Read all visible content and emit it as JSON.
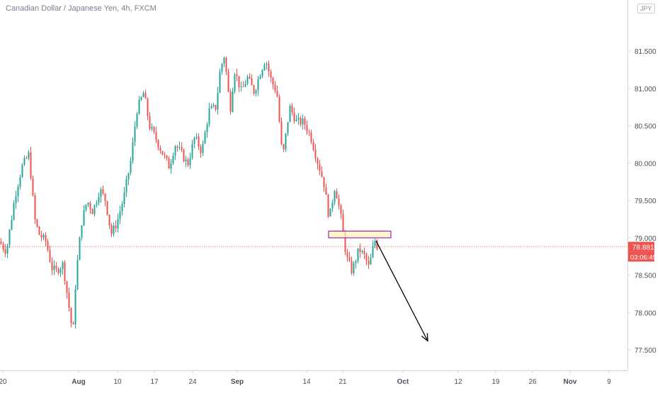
{
  "header": {
    "symbol_title": "Canadian Dollar / Japanese Yen, 4h, FXCM",
    "currency_badge": "JPY"
  },
  "price_axis": {
    "ticks": [
      "81.500",
      "81.000",
      "80.500",
      "80.000",
      "79.500",
      "79.000",
      "78.500",
      "78.000",
      "77.500"
    ],
    "current_price_label": "78.881",
    "countdown_label": "03:06:49"
  },
  "time_axis": {
    "ticks": [
      "20",
      "Aug",
      "10",
      "17",
      "24",
      "Sep",
      "14",
      "21",
      "Oct",
      "12",
      "19",
      "26",
      "Nov",
      "9"
    ]
  },
  "colors": {
    "up": "#26a69a",
    "down": "#ef5350",
    "current_price": "#ef5350",
    "zone_fill": "#fff3b0",
    "zone_border": "#9c27b0",
    "arrow": "#000000",
    "axis_text": "#4b4f5c",
    "axis_line": "#d1d4dc"
  },
  "chart_data": {
    "type": "candlestick",
    "title": "Canadian Dollar / Japanese Yen, 4h, FXCM",
    "ylim": [
      77.35,
      82.05
    ],
    "y_ticks": [
      81.5,
      81.0,
      80.5,
      80.0,
      79.5,
      79.0,
      78.5,
      78.0,
      77.5
    ],
    "x_labels": [
      "20",
      "Aug",
      "10",
      "17",
      "24",
      "Sep",
      "14",
      "21",
      "Oct",
      "12",
      "19",
      "26",
      "Nov",
      "9"
    ],
    "current_price": 78.881,
    "price_path": [
      [
        0,
        78.95
      ],
      [
        10,
        78.82
      ],
      [
        22,
        79.55
      ],
      [
        32,
        79.95
      ],
      [
        42,
        80.12
      ],
      [
        50,
        79.25
      ],
      [
        56,
        79.05
      ],
      [
        66,
        78.95
      ],
      [
        74,
        78.6
      ],
      [
        80,
        78.55
      ],
      [
        90,
        78.65
      ],
      [
        98,
        78.1
      ],
      [
        104,
        77.7
      ],
      [
        108,
        78.45
      ],
      [
        116,
        79.2
      ],
      [
        124,
        79.5
      ],
      [
        132,
        79.35
      ],
      [
        142,
        79.65
      ],
      [
        150,
        79.5
      ],
      [
        158,
        79.05
      ],
      [
        166,
        79.2
      ],
      [
        176,
        79.55
      ],
      [
        186,
        80.05
      ],
      [
        194,
        80.7
      ],
      [
        204,
        80.95
      ],
      [
        212,
        80.5
      ],
      [
        220,
        80.35
      ],
      [
        232,
        80.1
      ],
      [
        240,
        79.95
      ],
      [
        248,
        80.25
      ],
      [
        256,
        80.15
      ],
      [
        266,
        79.98
      ],
      [
        276,
        80.35
      ],
      [
        286,
        80.15
      ],
      [
        296,
        80.7
      ],
      [
        306,
        80.75
      ],
      [
        312,
        81.25
      ],
      [
        318,
        81.45
      ],
      [
        326,
        80.7
      ],
      [
        332,
        81.25
      ],
      [
        342,
        80.95
      ],
      [
        350,
        81.15
      ],
      [
        360,
        80.95
      ],
      [
        368,
        81.2
      ],
      [
        376,
        81.4
      ],
      [
        384,
        81.1
      ],
      [
        392,
        80.95
      ],
      [
        400,
        80.05
      ],
      [
        410,
        80.75
      ],
      [
        420,
        80.55
      ],
      [
        430,
        80.55
      ],
      [
        440,
        80.35
      ],
      [
        450,
        80.0
      ],
      [
        458,
        79.75
      ],
      [
        466,
        79.25
      ],
      [
        474,
        79.7
      ],
      [
        482,
        79.3
      ],
      [
        490,
        78.75
      ],
      [
        498,
        78.55
      ],
      [
        508,
        78.85
      ],
      [
        516,
        78.75
      ],
      [
        522,
        78.6
      ],
      [
        530,
        78.97
      ],
      [
        534,
        78.88
      ]
    ],
    "annotations": [
      {
        "type": "zone",
        "x0": 464,
        "x1": 552,
        "y0": 79.0,
        "y1": 79.09
      },
      {
        "type": "arrow",
        "from": [
          531,
          78.96
        ],
        "to": [
          604,
          77.62
        ]
      }
    ]
  }
}
